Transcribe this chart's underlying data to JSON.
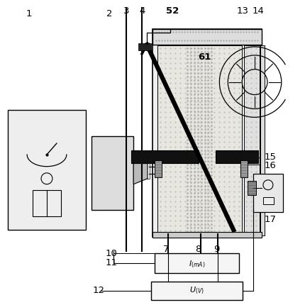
{
  "bg_color": "#ffffff",
  "lc": "#000000",
  "gray1": "#e8e8e8",
  "gray2": "#d8d8d8",
  "gray3": "#c8c8c8",
  "gray4": "#b0b0b0",
  "black": "#111111",
  "stipple": "#aaaaaa"
}
